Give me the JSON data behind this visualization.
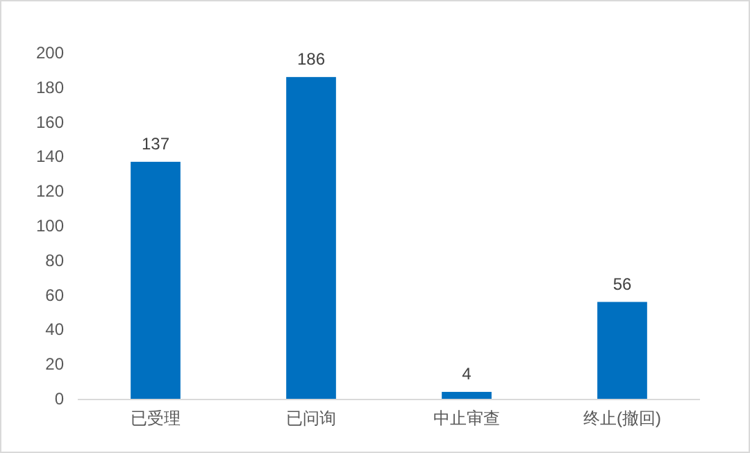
{
  "chart_data": {
    "type": "bar",
    "categories": [
      "已受理",
      "已问询",
      "中止审查",
      "终止(撤回)"
    ],
    "values": [
      137,
      186,
      4,
      56
    ],
    "color": "#0070c0",
    "ylim": [
      0,
      200
    ],
    "yticks": [
      0,
      20,
      40,
      60,
      80,
      100,
      120,
      140,
      160,
      180,
      200
    ],
    "data_labels": true,
    "grid": false
  }
}
